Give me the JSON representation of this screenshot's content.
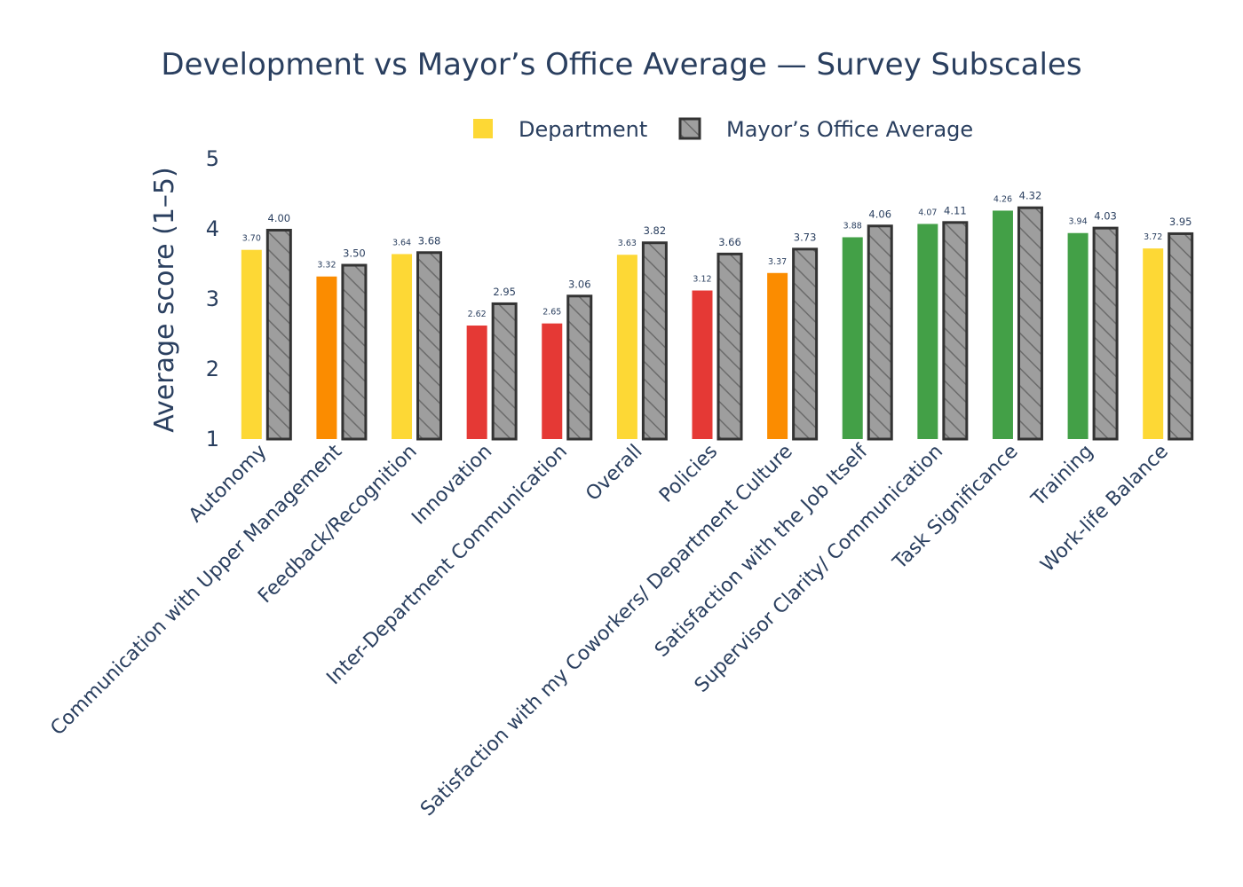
{
  "chart_data": {
    "type": "bar",
    "title": "Development vs Mayor’s Office Average — Survey Subscales",
    "xlabel": "",
    "ylabel": "Average score (1–5)",
    "ylim": [
      1,
      5
    ],
    "yticks": [
      "1",
      "2",
      "3",
      "4",
      "5"
    ],
    "legend_position": "top",
    "categories": [
      "Autonomy",
      "Communication with Upper Management",
      "Feedback/Recognition",
      "Innovation",
      "Inter-Department Communication",
      "Overall",
      "Policies",
      "Satisfaction with my Coworkers/ Department Culture",
      "Satisfaction with the Job Itself",
      "Supervisor Clarity/ Communication",
      "Task Significance",
      "Training",
      "Work-life Balance"
    ],
    "series": [
      {
        "name": "Department",
        "values": [
          3.7,
          3.32,
          3.64,
          2.62,
          2.65,
          3.63,
          3.12,
          3.37,
          3.88,
          4.07,
          4.26,
          3.94,
          3.72
        ],
        "labels": [
          "3.70",
          "3.32",
          "3.64",
          "2.62",
          "2.65",
          "3.63",
          "3.12",
          "3.37",
          "3.88",
          "4.07",
          "4.26",
          "3.94",
          "3.72"
        ],
        "colors": [
          "#fdd835",
          "#fb8c00",
          "#fdd835",
          "#e53935",
          "#e53935",
          "#fdd835",
          "#e53935",
          "#fb8c00",
          "#43a047",
          "#43a047",
          "#43a047",
          "#43a047",
          "#fdd835"
        ]
      },
      {
        "name": "Mayor’s Office Average",
        "values": [
          4.0,
          3.5,
          3.68,
          2.95,
          3.06,
          3.82,
          3.66,
          3.73,
          4.06,
          4.11,
          4.32,
          4.03,
          3.95
        ],
        "labels": [
          "4.00",
          "3.50",
          "3.68",
          "2.95",
          "3.06",
          "3.82",
          "3.66",
          "3.73",
          "4.06",
          "4.11",
          "4.32",
          "4.03",
          "3.95"
        ],
        "color": "#9e9e9e",
        "outline": "#333333",
        "pattern": "diagonal-hatch"
      }
    ],
    "legend_swatch_color": "#fdd835"
  }
}
